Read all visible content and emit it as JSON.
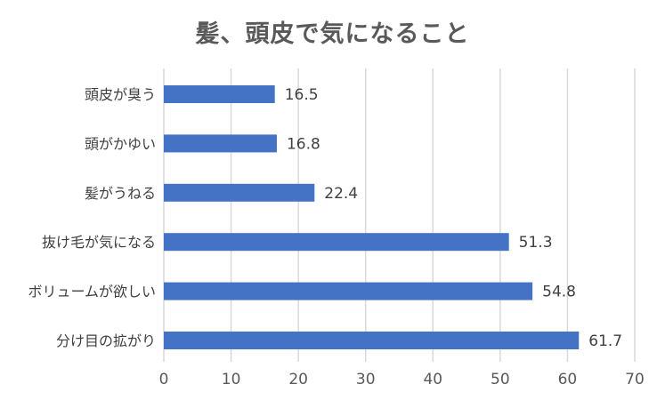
{
  "chart_data": {
    "type": "bar",
    "orientation": "horizontal",
    "title": "髪、頭皮で気になること",
    "categories": [
      "頭皮が臭う",
      "頭がかゆい",
      "髪がうねる",
      "抜け毛が気になる",
      "ボリュームが欲しい",
      "分け目の拡がり"
    ],
    "values": [
      16.5,
      16.8,
      22.4,
      51.3,
      54.8,
      61.7
    ],
    "xlim": [
      0,
      70
    ],
    "xticks": [
      0,
      10,
      20,
      30,
      40,
      50,
      60,
      70
    ],
    "xlabel": "",
    "ylabel": "",
    "grid": true,
    "legend": "none",
    "bar_color": "#4472C4",
    "gridline_color": "#D9D9D9",
    "data_labels": true
  }
}
